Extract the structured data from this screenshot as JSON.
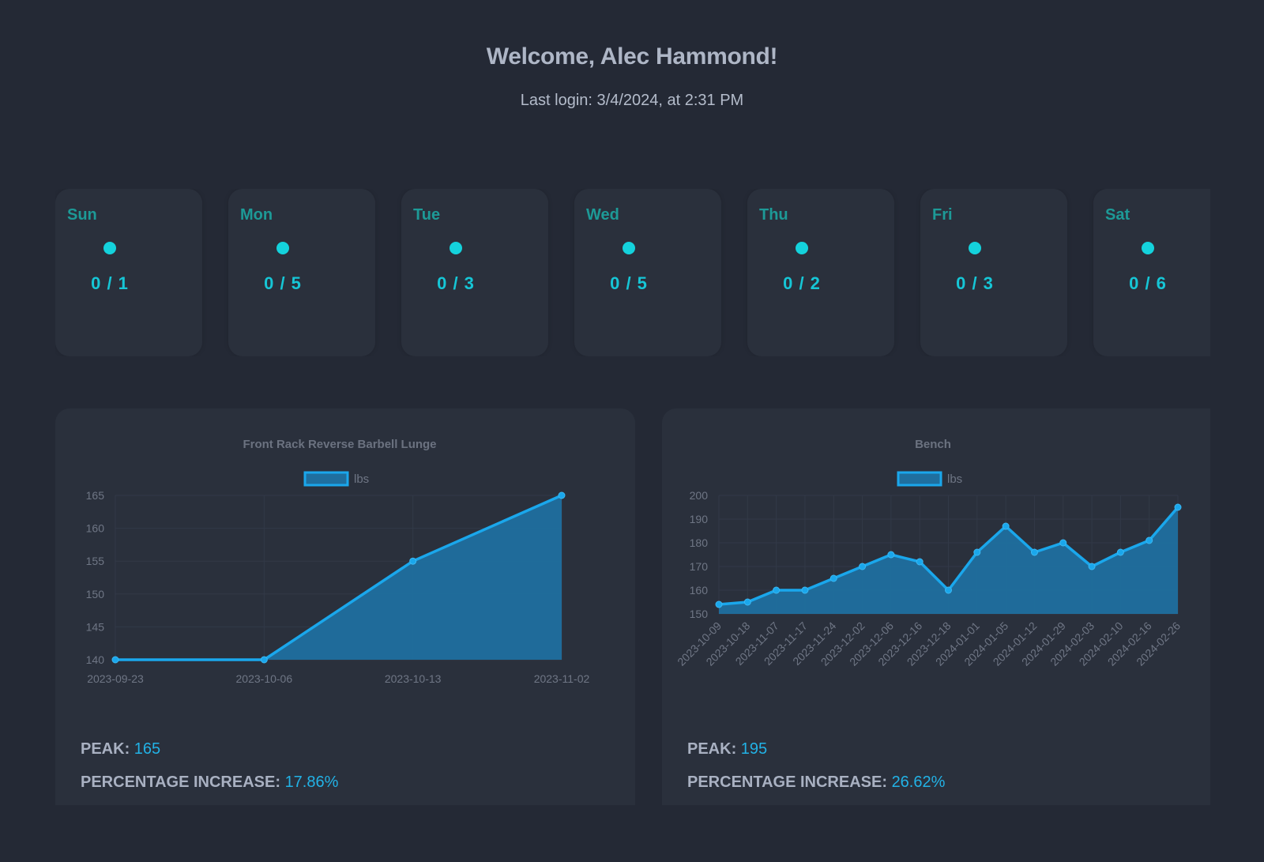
{
  "header": {
    "title": "Welcome, Alec Hammond!",
    "last_login": "Last login: 3/4/2024, at 2:31 PM"
  },
  "week": [
    {
      "day": "Sun",
      "count": "0 / 1"
    },
    {
      "day": "Mon",
      "count": "0 / 5"
    },
    {
      "day": "Tue",
      "count": "0 / 3"
    },
    {
      "day": "Wed",
      "count": "0 / 5"
    },
    {
      "day": "Thu",
      "count": "0 / 2"
    },
    {
      "day": "Fri",
      "count": "0 / 3"
    },
    {
      "day": "Sat",
      "count": "0 / 6"
    }
  ],
  "colors": {
    "background": "#242935",
    "card": "#2a303c",
    "day_label": "#1d9a97",
    "dot": "#14d2dc",
    "line": "#1aa7ec",
    "fill": "#1f6f9f",
    "value": "#22b2e6"
  },
  "panels": [
    {
      "peak_label": "PEAK:",
      "peak_value": "165",
      "pct_label": "PERCENTAGE INCREASE:",
      "pct_value": "17.86%"
    },
    {
      "peak_label": "PEAK:",
      "peak_value": "195",
      "pct_label": "PERCENTAGE INCREASE:",
      "pct_value": "26.62%"
    }
  ],
  "chart_data": [
    {
      "type": "area",
      "title": "Front Rack Reverse Barbell Lunge",
      "legend": [
        "lbs"
      ],
      "legend_position": "top",
      "xlabel": "",
      "ylabel": "",
      "categories": [
        "2023-09-23",
        "2023-10-06",
        "2023-10-13",
        "2023-11-02"
      ],
      "series": [
        {
          "name": "lbs",
          "values": [
            140,
            140,
            155,
            165
          ]
        }
      ],
      "ylim": [
        140,
        165
      ],
      "yticks": [
        140,
        145,
        150,
        155,
        160,
        165
      ],
      "grid": true
    },
    {
      "type": "area",
      "title": "Bench",
      "legend": [
        "lbs"
      ],
      "legend_position": "top",
      "xlabel": "",
      "ylabel": "",
      "categories": [
        "2023-10-09",
        "2023-10-18",
        "2023-11-07",
        "2023-11-17",
        "2023-11-24",
        "2023-12-02",
        "2023-12-06",
        "2023-12-16",
        "2023-12-18",
        "2024-01-01",
        "2024-01-05",
        "2024-01-12",
        "2024-01-29",
        "2024-02-03",
        "2024-02-10",
        "2024-02-16",
        "2024-02-26"
      ],
      "series": [
        {
          "name": "lbs",
          "values": [
            154,
            155,
            160,
            160,
            165,
            170,
            175,
            172,
            160,
            176,
            187,
            176,
            180,
            170,
            176,
            181,
            195
          ]
        }
      ],
      "ylim": [
        150,
        200
      ],
      "yticks": [
        150,
        160,
        170,
        180,
        190,
        200
      ],
      "grid": true
    }
  ]
}
